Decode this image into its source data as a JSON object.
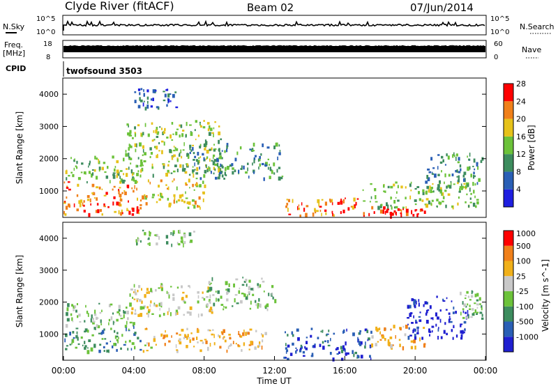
{
  "header": {
    "station": "Clyde River (fitACF)",
    "beam": "Beam 02",
    "date": "07/Jun/2014"
  },
  "top_panels": {
    "nsky_label": "N.Sky",
    "nsky_ticks": [
      "10^5",
      "10^0"
    ],
    "nsearch_label": "N.Search",
    "nsearch_ticks": [
      "10^5",
      "10^0"
    ],
    "freq_label_1": "Freq.",
    "freq_label_2": "[MHz]",
    "freq_ticks": [
      "18",
      "8"
    ],
    "nave_label": "Nave",
    "nave_ticks": [
      "60",
      "0"
    ],
    "cpid_label": "CPID",
    "cpid_value": "twofsound 3503"
  },
  "chart_data": [
    {
      "type": "heatmap",
      "name": "power",
      "ylabel": "Slant Range [km]",
      "yticks": [
        "1000",
        "2000",
        "3000",
        "4000"
      ],
      "ylim": [
        180,
        4500
      ],
      "xlim": [
        0,
        24
      ],
      "colorbar_label": "Power [dB]",
      "colorbar_ticks": [
        "4",
        "8",
        "12",
        "16",
        "20",
        "24",
        "28"
      ],
      "colorbar_range": [
        0,
        32
      ],
      "colors": [
        "#1f1fe0",
        "#2a5fb5",
        "#3d8c5e",
        "#6cc23a",
        "#e6c21a",
        "#f0801a",
        "#ff0000"
      ],
      "regions": [
        {
          "t": [
            0.0,
            4.5
          ],
          "r": [
            300,
            1300
          ],
          "level": 6
        },
        {
          "t": [
            0.0,
            4.5
          ],
          "r": [
            1300,
            2100
          ],
          "level": 4
        },
        {
          "t": [
            3.5,
            9.0
          ],
          "r": [
            1500,
            3200
          ],
          "level": 4
        },
        {
          "t": [
            4.0,
            6.5
          ],
          "r": [
            3600,
            4200
          ],
          "level": 2
        },
        {
          "t": [
            4.5,
            8.0
          ],
          "r": [
            500,
            1400
          ],
          "level": 5
        },
        {
          "t": [
            7.0,
            12.5
          ],
          "r": [
            1400,
            2500
          ],
          "level": 3
        },
        {
          "t": [
            12.5,
            17.0
          ],
          "r": [
            250,
            800
          ],
          "level": 6
        },
        {
          "t": [
            17.0,
            20.5
          ],
          "r": [
            250,
            550
          ],
          "level": 7
        },
        {
          "t": [
            17.0,
            23.5
          ],
          "r": [
            500,
            1300
          ],
          "level": 4
        },
        {
          "t": [
            20.5,
            23.8
          ],
          "r": [
            1000,
            2200
          ],
          "level": 3
        }
      ]
    },
    {
      "type": "heatmap",
      "name": "velocity",
      "ylabel": "Slant Range [km]",
      "yticks": [
        "1000",
        "2000",
        "3000",
        "4000"
      ],
      "ylim": [
        180,
        4500
      ],
      "xlim": [
        0,
        24
      ],
      "xlabel": "Time UT",
      "xticks": [
        "00:00",
        "04:00",
        "08:00",
        "12:00",
        "16:00",
        "20:00",
        "00:00"
      ],
      "colorbar_label": "Velocity [m s^-1]",
      "colorbar_ticks": [
        "1000",
        "500",
        "100",
        "25",
        "-25",
        "-100",
        "-500",
        "-1000"
      ],
      "colorbar_range": [
        -1000,
        1000
      ],
      "colors": [
        "#1f1fd0",
        "#2a5fb5",
        "#3d8c5e",
        "#6cc23a",
        "#c8c8c8",
        "#f0b01a",
        "#f0801a",
        "#ff0000"
      ],
      "regions": [
        {
          "t": [
            0.0,
            5.0
          ],
          "r": [
            500,
            1300
          ],
          "level": 3
        },
        {
          "t": [
            0.0,
            4.0
          ],
          "r": [
            1300,
            2000
          ],
          "level": 4
        },
        {
          "t": [
            3.5,
            8.5
          ],
          "r": [
            1600,
            2600
          ],
          "level": 5
        },
        {
          "t": [
            4.0,
            7.5
          ],
          "r": [
            3800,
            4300
          ],
          "level": 4
        },
        {
          "t": [
            4.5,
            11.5
          ],
          "r": [
            500,
            1200
          ],
          "level": 6
        },
        {
          "t": [
            8.0,
            12.0
          ],
          "r": [
            1800,
            2800
          ],
          "level": 4
        },
        {
          "t": [
            12.5,
            17.5
          ],
          "r": [
            250,
            1200
          ],
          "level": 2
        },
        {
          "t": [
            17.5,
            20.5
          ],
          "r": [
            600,
            1300
          ],
          "level": 6
        },
        {
          "t": [
            19.5,
            23.0
          ],
          "r": [
            900,
            2200
          ],
          "level": 1
        },
        {
          "t": [
            22.5,
            23.8
          ],
          "r": [
            1500,
            2400
          ],
          "level": 4
        }
      ]
    }
  ]
}
